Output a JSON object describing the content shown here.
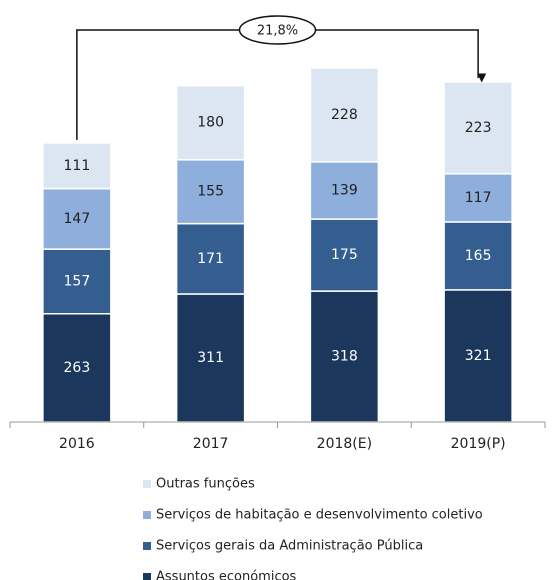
{
  "chart_data": {
    "type": "stacked_bar",
    "categories": [
      "2016",
      "2017",
      "2018(E)",
      "2019(P)"
    ],
    "series": [
      {
        "name": "Assuntos económicos",
        "color": "#1b385c",
        "values": [
          263,
          311,
          318,
          321
        ]
      },
      {
        "name": "Serviços gerais da Administração Pública",
        "color": "#345e90",
        "values": [
          157,
          171,
          175,
          165
        ]
      },
      {
        "name": "Serviços de habitação e desenvolvimento coletivo",
        "color": "#8eaedb",
        "values": [
          147,
          155,
          139,
          117
        ]
      },
      {
        "name": "Outras funções",
        "color": "#dce6f2",
        "values": [
          111,
          180,
          228,
          223
        ]
      }
    ],
    "annotation": "21,8%"
  }
}
